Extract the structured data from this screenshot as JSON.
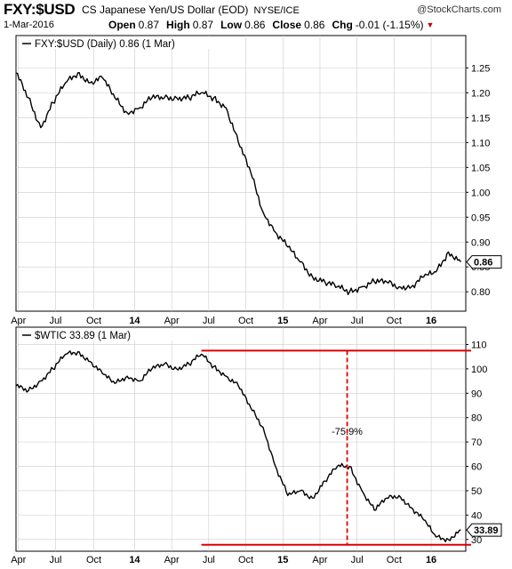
{
  "header": {
    "symbol": "FXY:$USD",
    "description": "CS Japanese Yen/US Dollar (EOD)",
    "exchange": "NYSE/ICE",
    "brand": "@StockCharts.com",
    "date": "1-Mar-2016",
    "open_label": "Open",
    "open": "0.87",
    "high_label": "High",
    "high": "0.87",
    "low_label": "Low",
    "low": "0.86",
    "close_label": "Close",
    "close": "0.86",
    "chg_label": "Chg",
    "chg": "-0.01 (-1.15%)"
  },
  "colors": {
    "line": "#000000",
    "annotation": "#dd0000",
    "grid": "#cccccc"
  },
  "chart_data": [
    {
      "type": "line",
      "title": "FXY:$USD (Daily) 0.86 (1 Mar)",
      "ylim": [
        0.77,
        1.29
      ],
      "yticks": [
        "0.80",
        "0.85",
        "0.90",
        "0.95",
        "1.00",
        "1.05",
        "1.10",
        "1.15",
        "1.20",
        "1.25"
      ],
      "x_tick_labels": [
        "Apr",
        "Jul",
        "Oct",
        "14",
        "Apr",
        "Jul",
        "Oct",
        "15",
        "Apr",
        "Jul",
        "Oct",
        "16"
      ],
      "last_value_label": "0.86",
      "series": [
        {
          "x": [
            "2013-03",
            "2013-04",
            "2013-05",
            "2013-06",
            "2013-07",
            "2013-08",
            "2013-09",
            "2013-10",
            "2013-11",
            "2013-12",
            "2014-01",
            "2014-02",
            "2014-03",
            "2014-04",
            "2014-05",
            "2014-06",
            "2014-07",
            "2014-08",
            "2014-09",
            "2014-10",
            "2014-11",
            "2014-12",
            "2015-01",
            "2015-02",
            "2015-03",
            "2015-04",
            "2015-05",
            "2015-06",
            "2015-07",
            "2015-08",
            "2015-09",
            "2015-10",
            "2015-11",
            "2015-12",
            "2016-01",
            "2016-02",
            "2016-03"
          ],
          "values": [
            1.24,
            1.19,
            1.13,
            1.18,
            1.22,
            1.24,
            1.22,
            1.23,
            1.19,
            1.16,
            1.17,
            1.19,
            1.19,
            1.19,
            1.19,
            1.2,
            1.19,
            1.17,
            1.1,
            1.04,
            0.96,
            0.92,
            0.89,
            0.86,
            0.83,
            0.82,
            0.81,
            0.8,
            0.81,
            0.82,
            0.82,
            0.81,
            0.81,
            0.83,
            0.84,
            0.88,
            0.86
          ]
        }
      ]
    },
    {
      "type": "line",
      "title": "$WTIC 33.89 (1 Mar)",
      "ylim": [
        27,
        112
      ],
      "yticks": [
        "30",
        "40",
        "50",
        "60",
        "70",
        "80",
        "90",
        "100",
        "110"
      ],
      "x_tick_labels": [
        "Apr",
        "Jul",
        "Oct",
        "14",
        "Apr",
        "Jul",
        "Oct",
        "15",
        "Apr",
        "Jul",
        "Oct",
        "16"
      ],
      "last_value_label": "33.89",
      "annotation": "-75.9%",
      "series": [
        {
          "x": [
            "2013-03",
            "2013-04",
            "2013-05",
            "2013-06",
            "2013-07",
            "2013-08",
            "2013-09",
            "2013-10",
            "2013-11",
            "2013-12",
            "2014-01",
            "2014-02",
            "2014-03",
            "2014-04",
            "2014-05",
            "2014-06",
            "2014-07",
            "2014-08",
            "2014-09",
            "2014-10",
            "2014-11",
            "2014-12",
            "2015-01",
            "2015-02",
            "2015-03",
            "2015-04",
            "2015-05",
            "2015-06",
            "2015-07",
            "2015-08",
            "2015-09",
            "2015-10",
            "2015-11",
            "2015-12",
            "2016-01",
            "2016-02",
            "2016-03"
          ],
          "values": [
            93,
            91,
            95,
            100,
            106,
            107,
            103,
            98,
            94,
            97,
            95,
            100,
            102,
            100,
            102,
            106,
            101,
            97,
            93,
            84,
            76,
            60,
            48,
            50,
            47,
            54,
            60,
            60,
            50,
            42,
            47,
            48,
            43,
            38,
            31,
            30,
            33.89
          ]
        }
      ]
    }
  ]
}
